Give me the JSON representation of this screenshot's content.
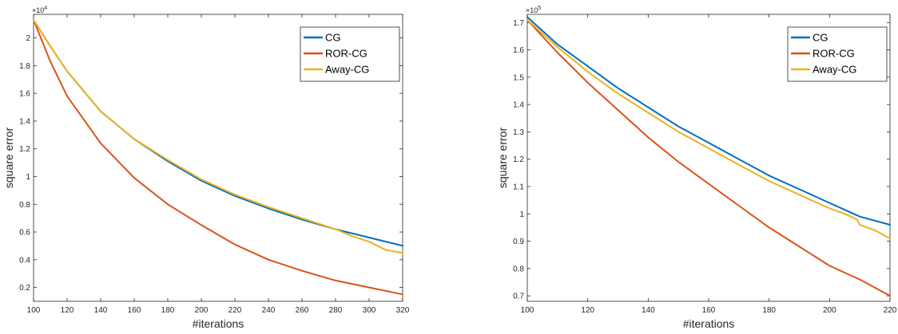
{
  "chart_data": [
    {
      "type": "line",
      "xlabel": "#iterations",
      "ylabel": "square error",
      "y_multiplier_label": "×10^4",
      "y_exp_base": "×10",
      "y_exp_power": "4",
      "xlim": [
        100,
        320
      ],
      "ylim": [
        0.1,
        2.17
      ],
      "x_ticks": [
        100,
        120,
        140,
        160,
        180,
        200,
        220,
        240,
        260,
        280,
        300,
        320
      ],
      "y_ticks": [
        0.2,
        0.4,
        0.6,
        0.8,
        1,
        1.2,
        1.4,
        1.6,
        1.8,
        2
      ],
      "grid": false,
      "legend_position": "top-right",
      "series": [
        {
          "name": "CG",
          "color": "#0072BD",
          "x": [
            100,
            110,
            120,
            140,
            160,
            180,
            200,
            220,
            240,
            260,
            280,
            300,
            320
          ],
          "y": [
            2.13,
            1.94,
            1.76,
            1.47,
            1.27,
            1.11,
            0.97,
            0.86,
            0.77,
            0.69,
            0.62,
            0.56,
            0.5
          ]
        },
        {
          "name": "ROR-CG",
          "color": "#D95319",
          "x": [
            100,
            110,
            120,
            140,
            160,
            180,
            200,
            220,
            240,
            260,
            280,
            300,
            320
          ],
          "y": [
            2.13,
            1.83,
            1.58,
            1.24,
            0.99,
            0.8,
            0.65,
            0.51,
            0.4,
            0.32,
            0.25,
            0.2,
            0.15
          ]
        },
        {
          "name": "Away-CG",
          "color": "#EDB120",
          "x": [
            100,
            110,
            120,
            140,
            160,
            180,
            200,
            220,
            240,
            260,
            280,
            290,
            300,
            310,
            320
          ],
          "y": [
            2.13,
            1.94,
            1.76,
            1.47,
            1.27,
            1.12,
            0.98,
            0.87,
            0.78,
            0.7,
            0.62,
            0.57,
            0.53,
            0.47,
            0.45
          ]
        }
      ]
    },
    {
      "type": "line",
      "xlabel": "#iterations",
      "ylabel": "square error",
      "y_multiplier_label": "×10^5",
      "y_exp_base": "×10",
      "y_exp_power": "5",
      "xlim": [
        100,
        220
      ],
      "ylim": [
        0.68,
        1.73
      ],
      "x_ticks": [
        100,
        120,
        140,
        160,
        180,
        200,
        220
      ],
      "y_ticks": [
        0.7,
        0.8,
        0.9,
        1,
        1.1,
        1.2,
        1.3,
        1.4,
        1.5,
        1.6,
        1.7
      ],
      "grid": false,
      "legend_position": "top-right",
      "series": [
        {
          "name": "CG",
          "color": "#0072BD",
          "x": [
            100,
            110,
            120,
            130,
            140,
            150,
            160,
            170,
            180,
            190,
            200,
            210,
            220
          ],
          "y": [
            1.72,
            1.62,
            1.54,
            1.46,
            1.39,
            1.32,
            1.26,
            1.2,
            1.14,
            1.09,
            1.04,
            0.99,
            0.96
          ]
        },
        {
          "name": "ROR-CG",
          "color": "#D95319",
          "x": [
            100,
            110,
            120,
            130,
            140,
            150,
            160,
            170,
            180,
            190,
            200,
            210,
            220
          ],
          "y": [
            1.71,
            1.59,
            1.48,
            1.38,
            1.28,
            1.19,
            1.11,
            1.03,
            0.95,
            0.88,
            0.81,
            0.76,
            0.7
          ]
        },
        {
          "name": "Away-CG",
          "color": "#EDB120",
          "x": [
            100,
            110,
            120,
            130,
            140,
            150,
            160,
            170,
            180,
            190,
            200,
            205,
            209,
            210,
            215,
            220
          ],
          "y": [
            1.71,
            1.61,
            1.52,
            1.44,
            1.37,
            1.3,
            1.24,
            1.18,
            1.12,
            1.07,
            1.02,
            1.0,
            0.98,
            0.96,
            0.94,
            0.91
          ]
        }
      ]
    }
  ]
}
